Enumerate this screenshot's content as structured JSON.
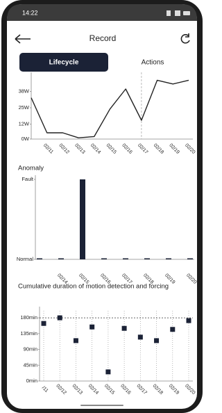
{
  "status": {
    "time": "14:22"
  },
  "header": {
    "title": "Record"
  },
  "tabs": [
    "Lifecycle",
    "Actions"
  ],
  "chart_data": [
    {
      "type": "line",
      "color": "#222222",
      "categories": [
        null,
        "02/11",
        "02/12",
        "02/13",
        "02/14",
        "02/15",
        "02/16",
        "02/17",
        "02/18",
        "02/19",
        "02/20"
      ],
      "values": [
        33,
        5,
        5,
        1,
        2,
        24,
        40,
        15,
        47,
        44,
        47
      ],
      "ylim": [
        0,
        50
      ],
      "yticks": [
        {
          "value": 0,
          "label": "0W"
        },
        {
          "value": 12,
          "label": "12W"
        },
        {
          "value": 25,
          "label": "25W"
        },
        {
          "value": 38,
          "label": "38W"
        }
      ],
      "highlight_index": 7
    },
    {
      "type": "bar",
      "title": "Anomaly",
      "color": "#1b2236",
      "categories": [
        null,
        "02/14",
        "02/15",
        "02/16",
        "02/17",
        "02/18",
        "02/19",
        "02/20"
      ],
      "values": [
        0,
        0,
        1,
        0,
        0,
        0,
        0,
        0
      ],
      "ylim": [
        0,
        1
      ],
      "yticks": [
        {
          "value": 0,
          "label": "Normal"
        },
        {
          "value": 1,
          "label": "Fault"
        }
      ]
    },
    {
      "type": "scatter",
      "title": "Cumulative duration of motion detection and forcing",
      "color": "#1b2236",
      "categories": [
        "/11",
        "02/12",
        "02/13",
        "02/14",
        "02/15",
        "02/16",
        "02/17",
        "02/18",
        "02/19",
        "02/20"
      ],
      "values": [
        164,
        180,
        115,
        154,
        26,
        150,
        125,
        115,
        147,
        172
      ],
      "ylim": [
        0,
        200
      ],
      "yticks": [
        {
          "value": 0,
          "label": "0min"
        },
        {
          "value": 45,
          "label": "45min"
        },
        {
          "value": 90,
          "label": "90min"
        },
        {
          "value": 135,
          "label": "135min"
        },
        {
          "value": 180,
          "label": "180min"
        }
      ],
      "x_grid": true,
      "reference_line": 180
    }
  ]
}
